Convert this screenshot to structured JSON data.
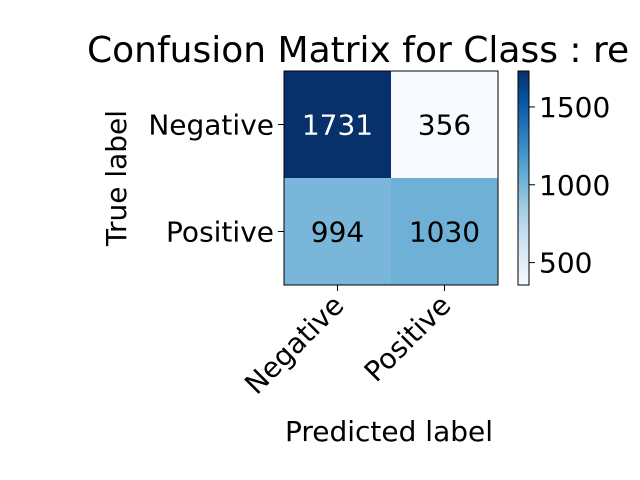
{
  "chart_data": {
    "type": "heatmap",
    "title": "Confusion Matrix for Class : re",
    "xlabel": "Predicted label",
    "ylabel": "True label",
    "x_categories": [
      "Negative",
      "Positive"
    ],
    "y_categories": [
      "Negative",
      "Positive"
    ],
    "values": [
      [
        1731,
        356
      ],
      [
        994,
        1030
      ]
    ],
    "colormap": "Blues",
    "colorbar": {
      "ticks": [
        500,
        1000,
        1500
      ],
      "range": [
        356,
        1731
      ]
    },
    "grid": false
  }
}
